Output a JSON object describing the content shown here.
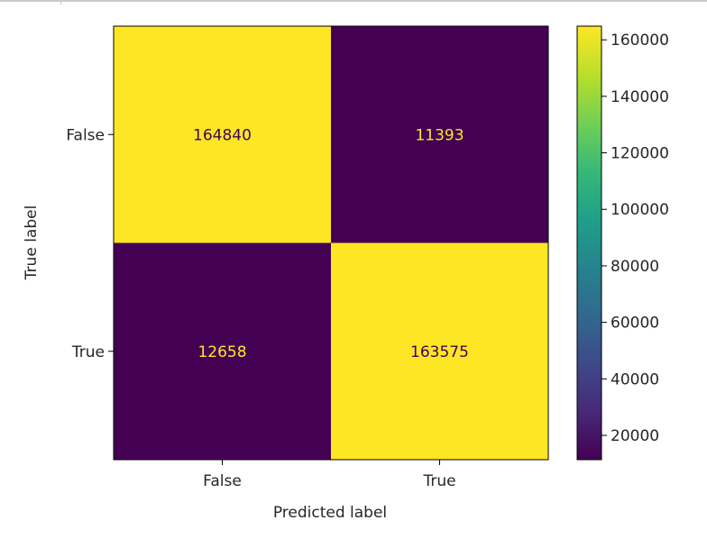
{
  "chart_data": {
    "type": "heatmap",
    "title": "",
    "xlabel": "Predicted label",
    "ylabel": "True label",
    "x_categories": [
      "False",
      "True"
    ],
    "y_categories": [
      "False",
      "True"
    ],
    "values": [
      [
        164840,
        11393
      ],
      [
        12658,
        163575
      ]
    ],
    "colormap": "viridis",
    "colors": {
      "high": "#fde725",
      "low": "#440154",
      "text_on_high": "#440154",
      "text_on_low": "#fde725"
    },
    "colorbar": {
      "ticks": [
        20000,
        40000,
        60000,
        80000,
        100000,
        120000,
        140000,
        160000
      ],
      "tick_labels": [
        "20000",
        "40000",
        "60000",
        "80000",
        "100000",
        "120000",
        "140000",
        "160000"
      ],
      "range": [
        11393,
        164840
      ]
    }
  }
}
